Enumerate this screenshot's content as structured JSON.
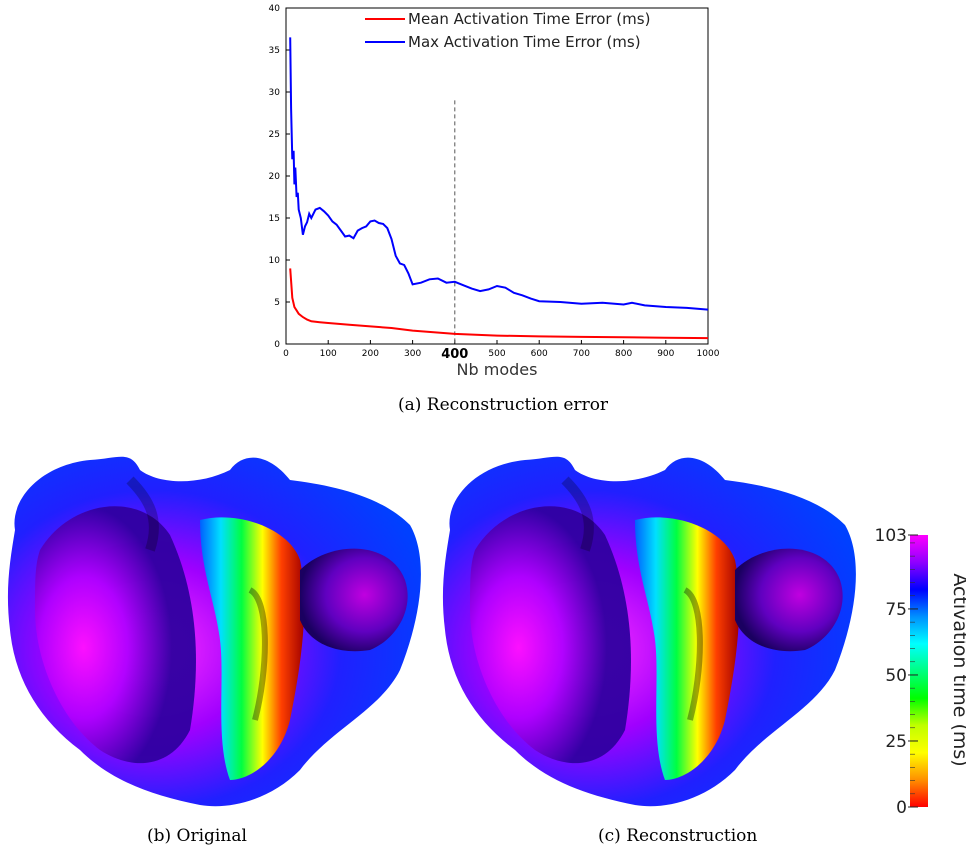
{
  "chart_data": {
    "type": "line",
    "title": "",
    "xlabel": "Nb modes",
    "ylabel": "",
    "xlim": [
      0,
      1000
    ],
    "ylim": [
      0,
      40
    ],
    "xticks": [
      0,
      100,
      200,
      300,
      400,
      500,
      600,
      700,
      800,
      900,
      1000
    ],
    "yticks": [
      0,
      5,
      10,
      15,
      20,
      25,
      30,
      35,
      40
    ],
    "highlight_tick": 400,
    "vline": 400,
    "legend_position": "top-right",
    "series": [
      {
        "name": "Mean Activation Time Error (ms)",
        "color": "#ff0000",
        "x": [
          10,
          12,
          15,
          20,
          25,
          30,
          40,
          50,
          60,
          80,
          100,
          150,
          200,
          250,
          300,
          350,
          400,
          450,
          500,
          600,
          700,
          800,
          900,
          1000
        ],
        "y": [
          9.0,
          7.5,
          5.5,
          4.4,
          4.0,
          3.6,
          3.2,
          2.9,
          2.7,
          2.6,
          2.5,
          2.3,
          2.1,
          1.9,
          1.6,
          1.4,
          1.2,
          1.1,
          1.0,
          0.9,
          0.85,
          0.8,
          0.75,
          0.7
        ]
      },
      {
        "name": "Max Activation Time Error (ms)",
        "color": "#0000ff",
        "x": [
          10,
          12,
          15,
          18,
          20,
          22,
          25,
          28,
          30,
          35,
          40,
          45,
          50,
          55,
          60,
          70,
          80,
          90,
          100,
          110,
          120,
          130,
          140,
          150,
          160,
          170,
          180,
          190,
          200,
          210,
          220,
          230,
          240,
          250,
          260,
          270,
          280,
          290,
          300,
          320,
          340,
          360,
          380,
          400,
          420,
          440,
          460,
          480,
          500,
          520,
          540,
          560,
          580,
          600,
          650,
          700,
          750,
          800,
          820,
          850,
          900,
          950,
          1000
        ],
        "y": [
          36.5,
          28.0,
          22.0,
          23.0,
          19.0,
          21.0,
          17.5,
          18.0,
          16.0,
          15.0,
          13.0,
          14.0,
          14.5,
          15.5,
          15.0,
          16.0,
          16.2,
          15.8,
          15.3,
          14.6,
          14.2,
          13.5,
          12.8,
          12.9,
          12.6,
          13.5,
          13.8,
          14.0,
          14.6,
          14.7,
          14.4,
          14.3,
          13.8,
          12.5,
          10.5,
          9.6,
          9.4,
          8.4,
          7.1,
          7.3,
          7.7,
          7.8,
          7.3,
          7.4,
          7.0,
          6.6,
          6.3,
          6.5,
          6.9,
          6.7,
          6.1,
          5.8,
          5.4,
          5.1,
          5.0,
          4.8,
          4.9,
          4.7,
          4.9,
          4.6,
          4.4,
          4.3,
          4.1
        ]
      }
    ]
  },
  "captions": {
    "a": "(a) Reconstruction error",
    "b": "(b) Original",
    "c": "(c) Reconstruction"
  },
  "colorbar": {
    "label": "Activation time (ms)",
    "ticks": [
      "103",
      "75",
      "50",
      "25",
      "0"
    ],
    "tick_values": [
      103,
      75,
      50,
      25,
      0
    ],
    "max": 103,
    "colors": [
      "#ff00ff",
      "#9000ff",
      "#0000ff",
      "#0090ff",
      "#00ffff",
      "#00ff80",
      "#00ff00",
      "#c0ff00",
      "#ffff00",
      "#ff9000",
      "#ff0000"
    ]
  }
}
